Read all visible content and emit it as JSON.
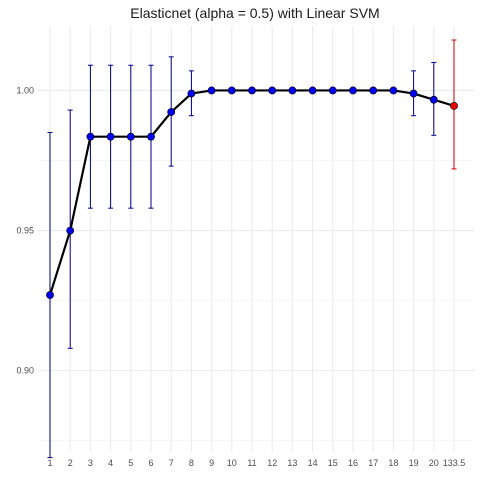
{
  "chart_data": {
    "type": "line",
    "title": "Elasticnet (alpha = 0.5) with Linear SVM",
    "xlabel": "",
    "ylabel": "",
    "categories": [
      "1",
      "2",
      "3",
      "4",
      "5",
      "6",
      "7",
      "8",
      "9",
      "10",
      "11",
      "12",
      "13",
      "14",
      "15",
      "16",
      "17",
      "18",
      "19",
      "20",
      "133.5"
    ],
    "yticks": [
      "0.90",
      "0.95",
      "1.00"
    ],
    "ylim": [
      0.871,
      1.023
    ],
    "grid": true,
    "series": [
      {
        "values": [
          0.927,
          0.95,
          0.9835,
          0.9835,
          0.9835,
          0.9835,
          0.9923,
          0.9989,
          1.0,
          1.0,
          1.0,
          1.0,
          1.0,
          1.0,
          1.0,
          1.0,
          1.0,
          1.0,
          0.9989,
          0.9967,
          0.9945
        ],
        "lower": [
          0.869,
          0.908,
          0.958,
          0.958,
          0.958,
          0.958,
          0.973,
          0.991,
          1.0,
          1.0,
          1.0,
          1.0,
          1.0,
          1.0,
          1.0,
          1.0,
          1.0,
          1.0,
          0.991,
          0.984,
          0.972
        ],
        "upper": [
          0.985,
          0.993,
          1.009,
          1.009,
          1.009,
          1.009,
          1.012,
          1.007,
          1.0,
          1.0,
          1.0,
          1.0,
          1.0,
          1.0,
          1.0,
          1.0,
          1.0,
          1.0,
          1.007,
          1.01,
          1.018
        ]
      }
    ],
    "highlight_index": 20,
    "colors": {
      "point": "#0000ee",
      "errorbar": "#00008b",
      "highlight": "#ee0000",
      "highlight_errorbar": "#cd0000",
      "line": "#000000",
      "grid_major": "#ebebeb",
      "grid_minor": "#f2f2f2"
    }
  }
}
